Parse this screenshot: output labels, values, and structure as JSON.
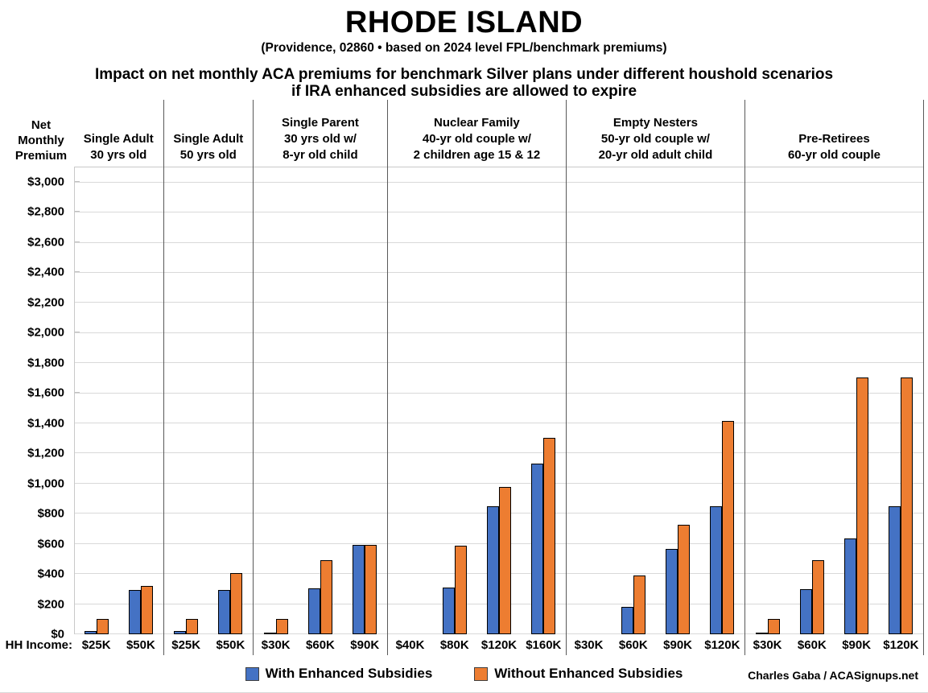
{
  "header": {
    "title": "RHODE ISLAND",
    "subtitle": "(Providence, 02860 • based on 2024 level FPL/benchmark premiums)",
    "heading_line1": "Impact on net monthly ACA premiums for benchmark Silver plans under different houshold scenarios",
    "heading_line2": "if IRA enhanced subsidies are allowed to expire"
  },
  "axis": {
    "y_label_lines": [
      "Net",
      "Monthly",
      "Premium"
    ],
    "hh_income_label": "HH Income:"
  },
  "legend": {
    "items": [
      {
        "label": "With Enhanced Subsidies",
        "color": "#4472C4"
      },
      {
        "label": "Without Enhanced Subsidies",
        "color": "#ED7D31"
      }
    ]
  },
  "credit": "Charles Gaba / ACASignups.net",
  "colors": {
    "with_subsidies": "#4472C4",
    "without_subsidies": "#ED7D31",
    "bar_border": "#000000",
    "gridline": "#D9D9D9",
    "separator": "#595959"
  },
  "chart_data": {
    "type": "bar",
    "title": "Impact on net monthly ACA premiums for benchmark Silver plans under different houshold scenarios if IRA enhanced subsidies are allowed to expire",
    "location": "Rhode Island (Providence, 02860)",
    "ylabel": "Net Monthly Premium",
    "xlabel": "HH Income",
    "ylim": [
      0,
      3000
    ],
    "ytick_step": 200,
    "ytick_labels": [
      "$0",
      "$200",
      "$400",
      "$600",
      "$800",
      "$1,000",
      "$1,200",
      "$1,400",
      "$1,600",
      "$1,800",
      "$2,000",
      "$2,200",
      "$2,400",
      "$2,600",
      "$2,800",
      "$3,000"
    ],
    "grid": true,
    "legend_position": "bottom",
    "series_names": [
      "With Enhanced Subsidies",
      "Without Enhanced Subsidies"
    ],
    "groups": [
      {
        "label_lines": [
          "Single Adult",
          "30 yrs old"
        ],
        "categories": [
          "$25K",
          "$50K"
        ],
        "series": [
          {
            "name": "With Enhanced Subsidies",
            "values": [
              20,
              295
            ]
          },
          {
            "name": "Without Enhanced Subsidies",
            "values": [
              100,
              320
            ]
          }
        ]
      },
      {
        "label_lines": [
          "Single Adult",
          "50 yrs old"
        ],
        "categories": [
          "$25K",
          "$50K"
        ],
        "series": [
          {
            "name": "With Enhanced Subsidies",
            "values": [
              20,
              295
            ]
          },
          {
            "name": "Without Enhanced Subsidies",
            "values": [
              100,
              405
            ]
          }
        ]
      },
      {
        "label_lines": [
          "Single Parent",
          "30 yrs old w/",
          "8-yr old child"
        ],
        "categories": [
          "$30K",
          "$60K",
          "$90K"
        ],
        "series": [
          {
            "name": "With Enhanced Subsidies",
            "values": [
              5,
              305,
              595
            ]
          },
          {
            "name": "Without Enhanced Subsidies",
            "values": [
              100,
              490,
              595
            ]
          }
        ]
      },
      {
        "label_lines": [
          "Nuclear Family",
          "40-yr old couple w/",
          "2 children age 15 & 12"
        ],
        "categories": [
          "$40K",
          "$80K",
          "$120K",
          "$160K"
        ],
        "series": [
          {
            "name": "With Enhanced Subsidies",
            "values": [
              0,
              310,
              850,
              1130
            ]
          },
          {
            "name": "Without Enhanced Subsidies",
            "values": [
              0,
              585,
              975,
              1300
            ]
          }
        ]
      },
      {
        "label_lines": [
          "Empty Nesters",
          "50-yr old couple w/",
          "20-yr old adult child"
        ],
        "categories": [
          "$30K",
          "$60K",
          "$90K",
          "$120K"
        ],
        "series": [
          {
            "name": "With Enhanced Subsidies",
            "values": [
              0,
              180,
              565,
              850
            ]
          },
          {
            "name": "Without Enhanced Subsidies",
            "values": [
              0,
              390,
              725,
              1415
            ]
          }
        ]
      },
      {
        "label_lines": [
          "Pre-Retirees",
          "60-yr old couple"
        ],
        "categories": [
          "$30K",
          "$60K",
          "$90K",
          "$120K"
        ],
        "series": [
          {
            "name": "With Enhanced Subsidies",
            "values": [
              5,
              300,
              635,
              850
            ]
          },
          {
            "name": "Without Enhanced Subsidies",
            "values": [
              100,
              490,
              1700,
              1700
            ]
          }
        ]
      }
    ]
  }
}
